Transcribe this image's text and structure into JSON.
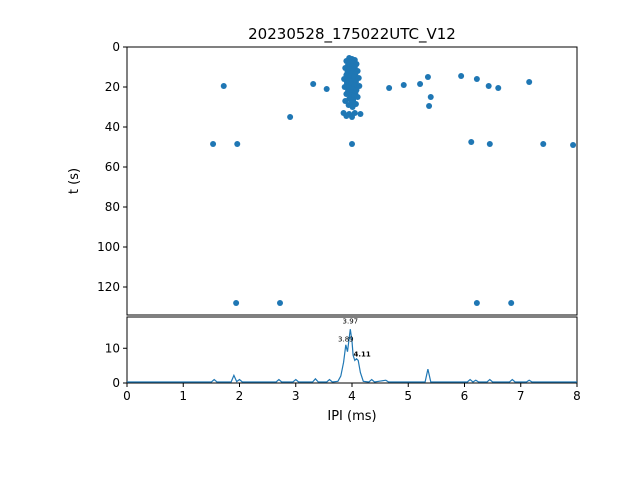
{
  "figure": {
    "title": "20230528_175022UTC_V12",
    "xlabel": "IPI (ms)",
    "ylabel_top": "t (s)"
  },
  "chart_data": [
    {
      "type": "scatter",
      "title": "20230528_175022UTC_V12",
      "xlabel": "IPI (ms)",
      "ylabel": "t (s)",
      "xlim": [
        0,
        8
      ],
      "ylim": [
        0,
        134
      ],
      "y_inverted": true,
      "x_ticks": [
        0,
        1,
        2,
        3,
        4,
        5,
        6,
        7,
        8
      ],
      "y_ticks": [
        0,
        20,
        40,
        60,
        80,
        100,
        120
      ],
      "marker_color": "#1f77b4",
      "grid": false,
      "legend": false,
      "points": [
        [
          3.95,
          5.5
        ],
        [
          4.0,
          6
        ],
        [
          4.05,
          6.5
        ],
        [
          3.9,
          7
        ],
        [
          3.97,
          7.5
        ],
        [
          4.02,
          8
        ],
        [
          4.08,
          8.5
        ],
        [
          3.93,
          9
        ],
        [
          4.0,
          9.5
        ],
        [
          4.05,
          10
        ],
        [
          3.88,
          10.5
        ],
        [
          3.96,
          11
        ],
        [
          4.03,
          11.5
        ],
        [
          4.1,
          12
        ],
        [
          3.92,
          12.5
        ],
        [
          4.0,
          13
        ],
        [
          4.06,
          13.5
        ],
        [
          3.9,
          14
        ],
        [
          3.98,
          14.5
        ],
        [
          4.04,
          15
        ],
        [
          4.12,
          15.5
        ],
        [
          3.86,
          16
        ],
        [
          3.94,
          16.5
        ],
        [
          4.01,
          17
        ],
        [
          4.07,
          17.5
        ],
        [
          3.91,
          18
        ],
        [
          3.99,
          18.5
        ],
        [
          4.05,
          19
        ],
        [
          4.13,
          19.5
        ],
        [
          3.87,
          20
        ],
        [
          3.95,
          20.5
        ],
        [
          4.02,
          21
        ],
        [
          4.08,
          21.5
        ],
        [
          3.93,
          22
        ],
        [
          4.0,
          22.5
        ],
        [
          4.06,
          23
        ],
        [
          3.9,
          23.5
        ],
        [
          3.97,
          24
        ],
        [
          4.04,
          24.5
        ],
        [
          4.1,
          25
        ],
        [
          3.95,
          26
        ],
        [
          4.02,
          26.5
        ],
        [
          3.88,
          27
        ],
        [
          4.0,
          28
        ],
        [
          4.07,
          28.5
        ],
        [
          3.94,
          29
        ],
        [
          4.01,
          30
        ],
        [
          3.85,
          33
        ],
        [
          3.95,
          33.5
        ],
        [
          4.05,
          33
        ],
        [
          4.15,
          33.5
        ],
        [
          3.9,
          34.5
        ],
        [
          4.0,
          35
        ],
        [
          1.72,
          19.5
        ],
        [
          3.31,
          18.5
        ],
        [
          3.55,
          21
        ],
        [
          2.9,
          35
        ],
        [
          4.66,
          20.5
        ],
        [
          4.92,
          19
        ],
        [
          5.21,
          18.5
        ],
        [
          5.35,
          15
        ],
        [
          5.4,
          25
        ],
        [
          5.37,
          29.5
        ],
        [
          5.94,
          14.5
        ],
        [
          6.22,
          16
        ],
        [
          6.43,
          19.5
        ],
        [
          6.6,
          20.5
        ],
        [
          7.15,
          17.5
        ],
        [
          4.0,
          48.5
        ],
        [
          1.53,
          48.5
        ],
        [
          1.96,
          48.5
        ],
        [
          6.12,
          47.5
        ],
        [
          6.45,
          48.5
        ],
        [
          7.4,
          48.5
        ],
        [
          7.93,
          49
        ],
        [
          1.94,
          128
        ],
        [
          2.72,
          128
        ],
        [
          6.22,
          128
        ],
        [
          6.83,
          128
        ]
      ]
    },
    {
      "type": "line",
      "xlabel": "IPI (ms)",
      "xlim": [
        0,
        8
      ],
      "ylim": [
        0,
        19
      ],
      "x_ticks": [
        0,
        1,
        2,
        3,
        4,
        5,
        6,
        7,
        8
      ],
      "y_ticks": [
        0,
        10
      ],
      "line_color": "#1f77b4",
      "grid": false,
      "legend": false,
      "points": [
        [
          0,
          0.3
        ],
        [
          1.5,
          0.3
        ],
        [
          1.55,
          1
        ],
        [
          1.6,
          0.3
        ],
        [
          1.85,
          0.3
        ],
        [
          1.9,
          2.2
        ],
        [
          1.95,
          0.4
        ],
        [
          2.0,
          1.0
        ],
        [
          2.05,
          0.3
        ],
        [
          2.65,
          0.3
        ],
        [
          2.7,
          1
        ],
        [
          2.75,
          0.3
        ],
        [
          2.95,
          0.3
        ],
        [
          3.0,
          1
        ],
        [
          3.05,
          0.3
        ],
        [
          3.3,
          0.3
        ],
        [
          3.35,
          1.2
        ],
        [
          3.4,
          0.3
        ],
        [
          3.55,
          0.3
        ],
        [
          3.6,
          1
        ],
        [
          3.65,
          0.3
        ],
        [
          3.75,
          0.5
        ],
        [
          3.8,
          2
        ],
        [
          3.85,
          6
        ],
        [
          3.89,
          11
        ],
        [
          3.92,
          9
        ],
        [
          3.95,
          13
        ],
        [
          3.97,
          15.5
        ],
        [
          4.0,
          12
        ],
        [
          4.02,
          8
        ],
        [
          4.05,
          6.5
        ],
        [
          4.08,
          7
        ],
        [
          4.11,
          6.5
        ],
        [
          4.15,
          3
        ],
        [
          4.2,
          0.5
        ],
        [
          4.3,
          0.3
        ],
        [
          4.35,
          1
        ],
        [
          4.4,
          0.3
        ],
        [
          4.6,
          0.8
        ],
        [
          4.65,
          0.3
        ],
        [
          5.3,
          0.3
        ],
        [
          5.35,
          4
        ],
        [
          5.4,
          0.3
        ],
        [
          6.05,
          0.3
        ],
        [
          6.1,
          1
        ],
        [
          6.15,
          0.3
        ],
        [
          6.2,
          0.8
        ],
        [
          6.25,
          0.3
        ],
        [
          6.4,
          0.3
        ],
        [
          6.45,
          1
        ],
        [
          6.5,
          0.3
        ],
        [
          6.8,
          0.3
        ],
        [
          6.85,
          1
        ],
        [
          6.9,
          0.3
        ],
        [
          7.1,
          0.3
        ],
        [
          7.15,
          0.8
        ],
        [
          7.2,
          0.3
        ],
        [
          8,
          0.3
        ]
      ],
      "annotations": [
        {
          "text": "3.97",
          "x": 3.97,
          "y": 16.6,
          "bold": false
        },
        {
          "text": "3.89",
          "x": 3.89,
          "y": 11.4,
          "bold": false
        },
        {
          "text": "4.11",
          "x": 4.18,
          "y": 7.0,
          "bold": true
        }
      ]
    }
  ]
}
